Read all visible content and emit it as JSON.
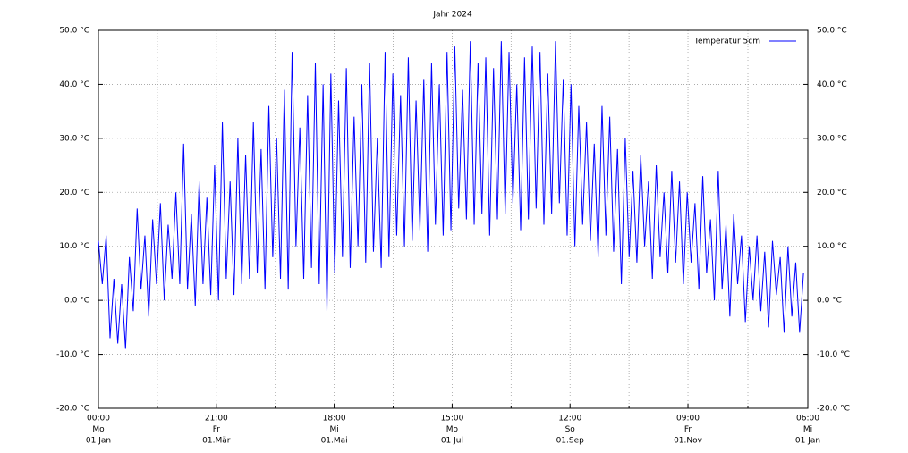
{
  "chart_data": {
    "type": "line",
    "title": "Jahr 2024",
    "x": [
      0,
      2,
      4,
      6,
      8,
      10,
      12,
      14,
      16,
      18,
      20,
      22,
      24,
      26,
      28,
      30,
      32,
      34,
      36,
      38,
      40,
      42,
      44,
      46,
      48,
      50,
      52,
      54,
      56,
      58,
      60,
      62,
      64,
      66,
      68,
      70,
      72,
      74,
      76,
      78,
      80,
      82,
      84,
      86,
      88,
      90,
      92,
      94,
      96,
      98,
      100,
      102,
      104,
      106,
      108,
      110,
      112,
      114,
      116,
      118,
      120,
      122,
      124,
      126,
      128,
      130,
      132,
      134,
      136,
      138,
      140,
      142,
      144,
      146,
      148,
      150,
      152,
      154,
      156,
      158,
      160,
      162,
      164,
      166,
      168,
      170,
      172,
      174,
      176,
      178,
      180,
      182,
      184,
      186,
      188,
      190,
      192,
      194,
      196,
      198,
      200,
      202,
      204,
      206,
      208,
      210,
      212,
      214,
      216,
      218,
      220,
      222,
      224,
      226,
      228,
      230,
      232,
      234,
      236,
      238,
      240,
      242,
      244,
      246,
      248,
      250,
      252,
      254,
      256,
      258,
      260,
      262,
      264,
      266,
      268,
      270,
      272,
      274,
      276,
      278,
      280,
      282,
      284,
      286,
      288,
      290,
      292,
      294,
      296,
      298,
      300,
      302,
      304,
      306,
      308,
      310,
      312,
      314,
      316,
      318,
      320,
      322,
      324,
      326,
      328,
      330,
      332,
      334,
      336,
      338,
      340,
      342,
      344,
      346,
      348,
      350,
      352,
      354,
      356,
      358,
      360,
      362,
      364
    ],
    "series": [
      {
        "name": "Temperatur 5cm",
        "color": "#0000ff",
        "values": [
          11,
          3,
          12,
          -7,
          4,
          -8,
          3,
          -9,
          8,
          -2,
          17,
          2,
          12,
          -3,
          15,
          3,
          18,
          0,
          14,
          4,
          20,
          3,
          29,
          2,
          16,
          -1,
          22,
          3,
          19,
          1,
          25,
          0,
          33,
          4,
          22,
          1,
          30,
          3,
          27,
          4,
          33,
          5,
          28,
          2,
          36,
          8,
          30,
          4,
          39,
          2,
          46,
          10,
          32,
          4,
          38,
          6,
          44,
          3,
          40,
          -2,
          42,
          5,
          37,
          8,
          43,
          6,
          34,
          10,
          40,
          7,
          44,
          9,
          30,
          6,
          46,
          8,
          42,
          12,
          38,
          10,
          45,
          11,
          37,
          13,
          41,
          9,
          44,
          14,
          40,
          12,
          46,
          13,
          47,
          17,
          39,
          15,
          48,
          14,
          44,
          16,
          45,
          12,
          43,
          15,
          48,
          16,
          46,
          18,
          40,
          13,
          45,
          15,
          47,
          17,
          46,
          14,
          42,
          16,
          48,
          18,
          41,
          12,
          40,
          10,
          36,
          14,
          33,
          11,
          29,
          8,
          36,
          12,
          34,
          9,
          28,
          3,
          30,
          8,
          24,
          7,
          27,
          10,
          22,
          4,
          25,
          8,
          20,
          5,
          24,
          7,
          22,
          3,
          20,
          7,
          18,
          2,
          23,
          5,
          15,
          0,
          24,
          2,
          14,
          -3,
          16,
          3,
          12,
          -4,
          10,
          0,
          12,
          -2,
          9,
          -5,
          11,
          1,
          8,
          -6,
          10,
          -3,
          7,
          -6,
          5
        ]
      }
    ],
    "xlim": [
      0,
      366.25
    ],
    "xticks": [
      {
        "value": 0,
        "label": [
          "00:00",
          "Mo",
          "01 Jan"
        ]
      },
      {
        "value": 60.875,
        "label": [
          "21:00",
          "Fr",
          "01.Mär"
        ]
      },
      {
        "value": 121.75,
        "label": [
          "18:00",
          "Mi",
          "01.Mai"
        ]
      },
      {
        "value": 182.625,
        "label": [
          "15:00",
          "Mo",
          "01 Jul"
        ]
      },
      {
        "value": 243.5,
        "label": [
          "12:00",
          "So",
          "01.Sep"
        ]
      },
      {
        "value": 304.375,
        "label": [
          "09:00",
          "Fr",
          "01.Nov"
        ]
      },
      {
        "value": 366.25,
        "label": [
          "06:00",
          "Mi",
          "01 Jan"
        ]
      }
    ],
    "ylim": [
      -20,
      50
    ],
    "yticks": [
      {
        "value": -20,
        "label": "-20.0 °C"
      },
      {
        "value": -10,
        "label": "-10.0 °C"
      },
      {
        "value": 0,
        "label": "0.0 °C"
      },
      {
        "value": 10,
        "label": "10.0 °C"
      },
      {
        "value": 20,
        "label": "20.0 °C"
      },
      {
        "value": 30,
        "label": "30.0 °C"
      },
      {
        "value": 40,
        "label": "40.0 °C"
      },
      {
        "value": 50,
        "label": "50.0 °C"
      }
    ],
    "y2lim": [
      -20,
      50
    ],
    "y2ticks": [
      {
        "value": -20,
        "label": "-20.0 °C"
      },
      {
        "value": -10,
        "label": "-10.0 °C"
      },
      {
        "value": 0,
        "label": "0.0 °C"
      },
      {
        "value": 10,
        "label": "10.0 °C"
      },
      {
        "value": 20,
        "label": "20.0 °C"
      },
      {
        "value": 30,
        "label": "30.0 °C"
      },
      {
        "value": 40,
        "label": "40.0 °C"
      },
      {
        "value": 50,
        "label": "50.0 °C"
      }
    ],
    "grid": true,
    "legend": "top-right"
  }
}
